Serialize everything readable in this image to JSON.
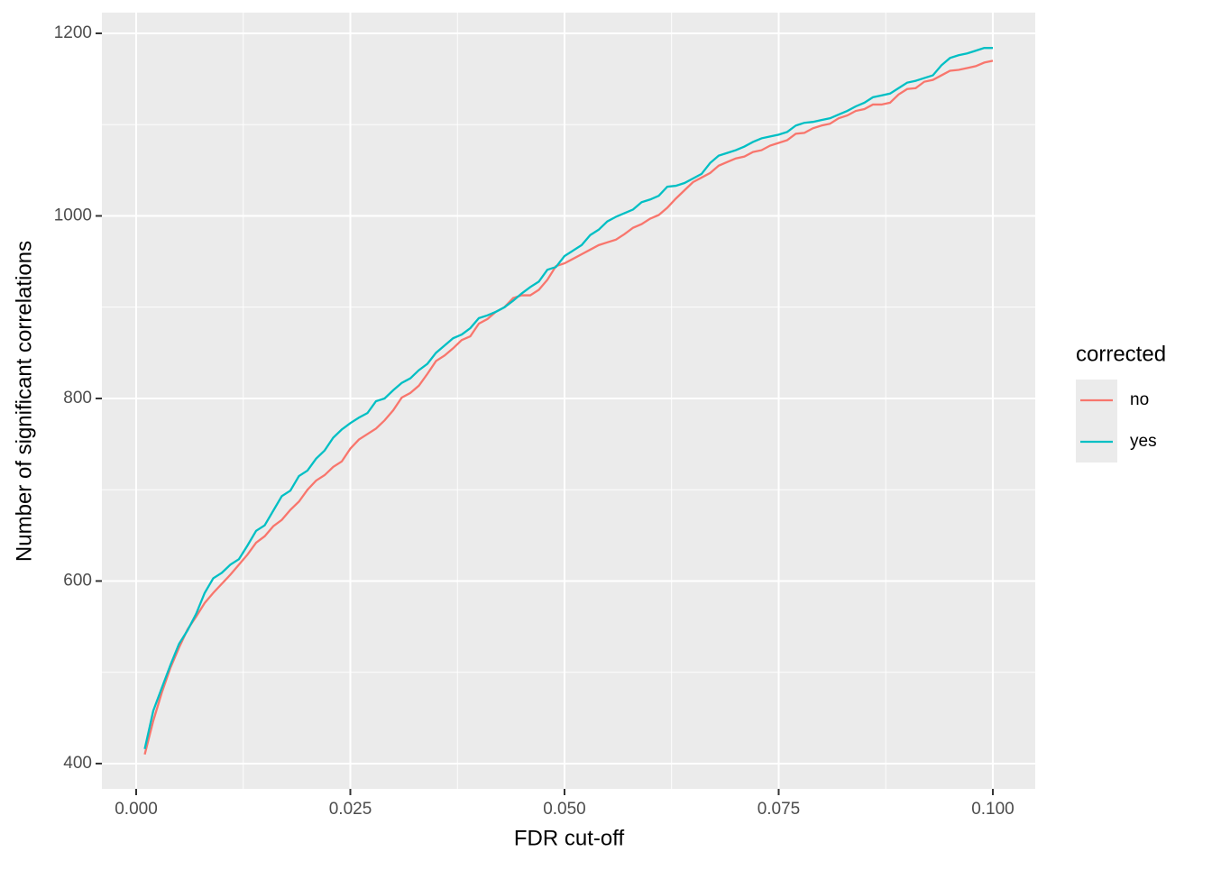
{
  "chart_data": {
    "type": "line",
    "x_label": "FDR cut-off",
    "y_label": "Number of significant correlations",
    "legend_title": "corrected",
    "legend_position": "right",
    "grid": true,
    "xlim": [
      -0.004,
      0.10495
    ],
    "ylim": [
      372.3,
      1222.7
    ],
    "xticks": [
      {
        "value": 0,
        "label": "0.000"
      },
      {
        "value": 0.025,
        "label": "0.025"
      },
      {
        "value": 0.05,
        "label": "0.050"
      },
      {
        "value": 0.075,
        "label": "0.075"
      },
      {
        "value": 0.1,
        "label": "0.100"
      }
    ],
    "yticks": [
      400,
      600,
      800,
      1000,
      1200
    ],
    "x": [
      0.001,
      0.002,
      0.003,
      0.004,
      0.005,
      0.006,
      0.007,
      0.008,
      0.009,
      0.01,
      0.011,
      0.012,
      0.013,
      0.014,
      0.015,
      0.016,
      0.017,
      0.018,
      0.019,
      0.02,
      0.021,
      0.022,
      0.023,
      0.024,
      0.025,
      0.026,
      0.027,
      0.028,
      0.029,
      0.03,
      0.031,
      0.032,
      0.033,
      0.034,
      0.035,
      0.036,
      0.037,
      0.038,
      0.039,
      0.04,
      0.041,
      0.042,
      0.043,
      0.044,
      0.045,
      0.046,
      0.047,
      0.048,
      0.049,
      0.05,
      0.051,
      0.052,
      0.053,
      0.054,
      0.055,
      0.056,
      0.057,
      0.058,
      0.059,
      0.06,
      0.061,
      0.062,
      0.063,
      0.064,
      0.065,
      0.066,
      0.067,
      0.068,
      0.069,
      0.07,
      0.071,
      0.072,
      0.073,
      0.074,
      0.075,
      0.076,
      0.077,
      0.078,
      0.079,
      0.08,
      0.081,
      0.082,
      0.083,
      0.084,
      0.085,
      0.086,
      0.087,
      0.088,
      0.089,
      0.09,
      0.091,
      0.092,
      0.093,
      0.094,
      0.095,
      0.096,
      0.097,
      0.098,
      0.099,
      0.1
    ],
    "series": [
      {
        "name": "no",
        "color": "#F8766D",
        "values": [
          410,
          447,
          478,
          505,
          527,
          547,
          561,
          576,
          587,
          597,
          607,
          618,
          629,
          642,
          649,
          660,
          667,
          678,
          687,
          700,
          710,
          716,
          725,
          731,
          745,
          755,
          761,
          767,
          776,
          787,
          801,
          806,
          814,
          827,
          841,
          847,
          855,
          864,
          868,
          882,
          887,
          895,
          900,
          910,
          913,
          913,
          919,
          930,
          945,
          948,
          953,
          958,
          963,
          968,
          971,
          974,
          980,
          987,
          991,
          997,
          1001,
          1009,
          1019,
          1028,
          1037,
          1042,
          1047,
          1055,
          1059,
          1063,
          1065,
          1070,
          1072,
          1077,
          1080,
          1083,
          1090,
          1091,
          1096,
          1099,
          1101,
          1107,
          1110,
          1115,
          1117,
          1122,
          1122,
          1124,
          1133,
          1139,
          1140,
          1147,
          1149,
          1154,
          1159,
          1160,
          1162,
          1164,
          1168,
          1170
        ]
      },
      {
        "name": "yes",
        "color": "#00BFC4",
        "values": [
          416,
          458,
          483,
          508,
          531,
          546,
          564,
          587,
          603,
          609,
          618,
          624,
          639,
          655,
          661,
          677,
          693,
          699,
          715,
          721,
          734,
          743,
          757,
          766,
          773,
          779,
          784,
          797,
          800,
          809,
          817,
          822,
          831,
          838,
          850,
          858,
          866,
          870,
          877,
          888,
          891,
          895,
          900,
          907,
          915,
          922,
          928,
          941,
          944,
          956,
          962,
          968,
          979,
          985,
          994,
          999,
          1003,
          1007,
          1015,
          1018,
          1022,
          1032,
          1033,
          1036,
          1041,
          1046,
          1058,
          1066,
          1069,
          1072,
          1076,
          1081,
          1085,
          1087,
          1089,
          1092,
          1099,
          1102,
          1103,
          1105,
          1107,
          1111,
          1115,
          1120,
          1124,
          1130,
          1132,
          1134,
          1140,
          1146,
          1148,
          1151,
          1154,
          1165,
          1173,
          1176,
          1178,
          1181,
          1184,
          1184
        ]
      }
    ]
  }
}
